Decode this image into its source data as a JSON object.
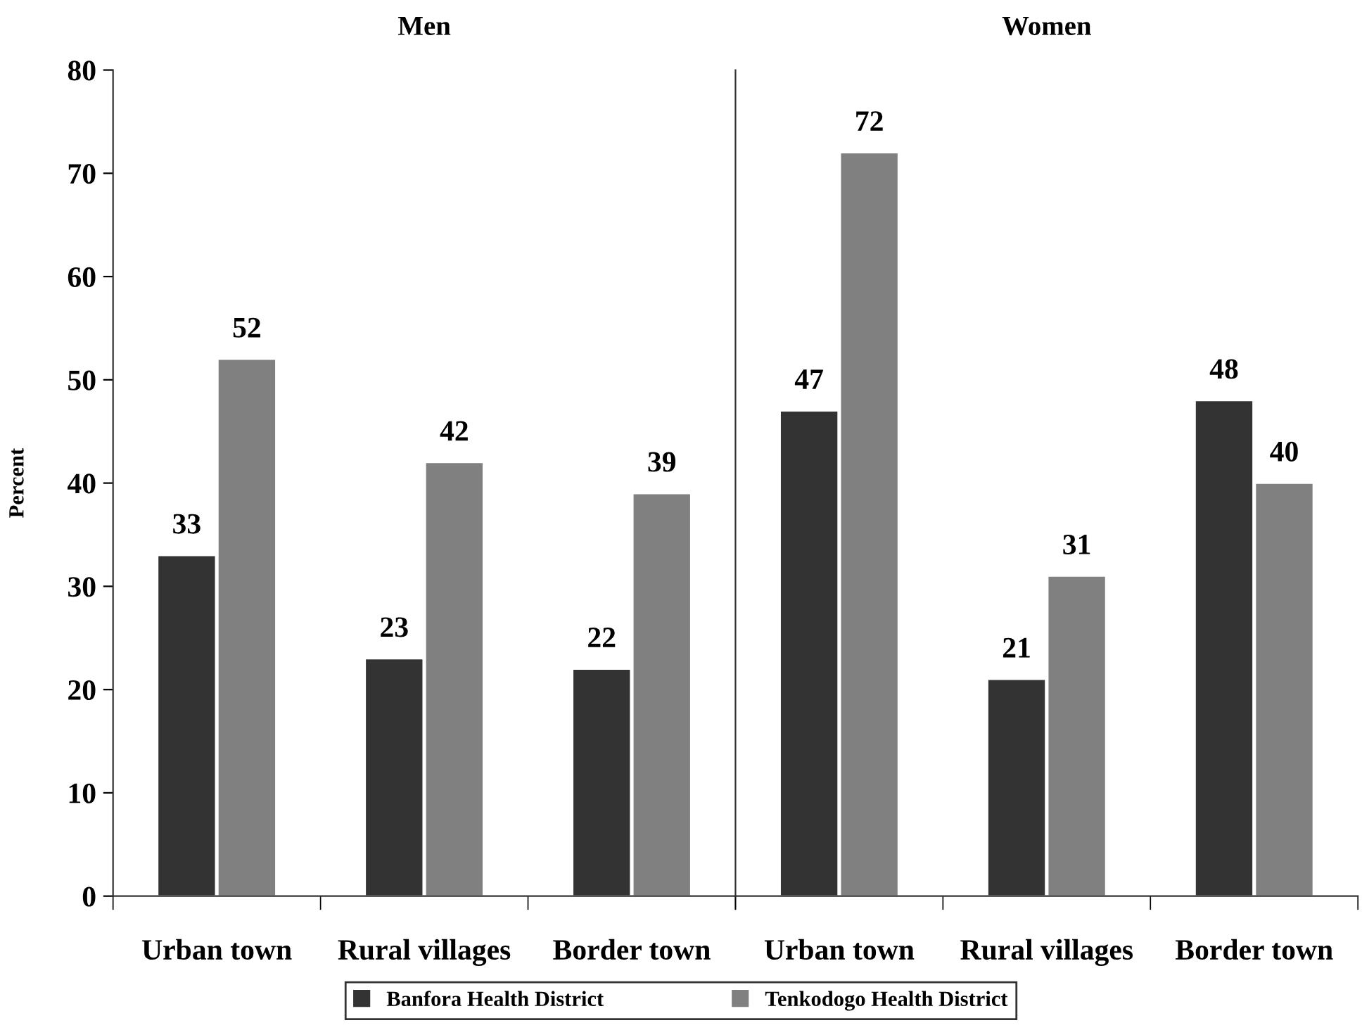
{
  "chart_data": [
    {
      "type": "bar",
      "title": "Men",
      "ylabel": "Percent",
      "categories": [
        "Urban town",
        "Rural villages",
        "Border town"
      ],
      "series": [
        {
          "name": "Banfora Health District",
          "color": "#333333",
          "values": [
            33,
            23,
            22
          ]
        },
        {
          "name": "Tenkodogo Health District",
          "color": "#808080",
          "values": [
            52,
            42,
            39
          ]
        }
      ],
      "ylim": [
        0,
        80
      ],
      "yticks": [
        0,
        10,
        20,
        30,
        40,
        50,
        60,
        70,
        80
      ],
      "data_labels": true,
      "grid": false,
      "legend": "bottom"
    },
    {
      "type": "bar",
      "title": "Women",
      "categories": [
        "Urban town",
        "Rural villages",
        "Border town"
      ],
      "series": [
        {
          "color": "#333333",
          "values": [
            47,
            21,
            48
          ]
        },
        {
          "color": "#808080",
          "values": [
            72,
            31,
            40
          ]
        }
      ],
      "ylim": [
        0,
        80
      ],
      "tick_labels": "x",
      "data_labels": true,
      "grid": false
    }
  ]
}
